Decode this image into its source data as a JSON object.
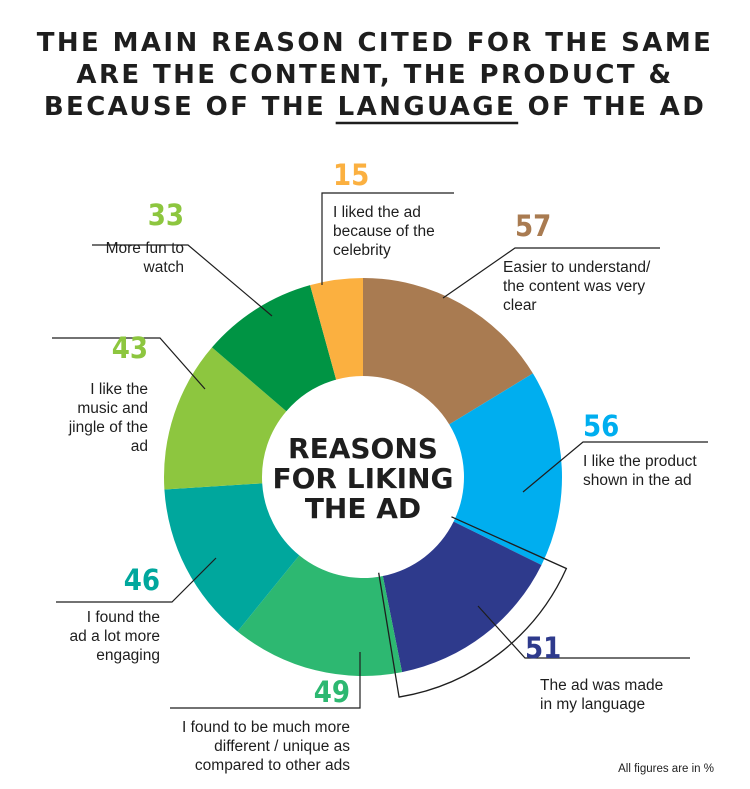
{
  "title": {
    "line1": "THE MAIN REASON CITED FOR THE SAME",
    "line2": "ARE THE CONTENT, THE PRODUCT &",
    "line3_pre": "BECAUSE OF THE ",
    "line3_mid": "LANGUAGE",
    "line3_post": " OF THE AD"
  },
  "center": {
    "line1": "REASONS",
    "line2": "FOR LIKING",
    "line3": "THE AD"
  },
  "footnote": "All figures are in %",
  "chart_data": {
    "type": "donut",
    "title": "REASONS FOR LIKING THE AD",
    "unit": "%",
    "series": [
      {
        "value": 57,
        "label_lines": [
          "Easier to understand/",
          "the content was very",
          "clear"
        ],
        "color": "#A97B51",
        "value_color": "#A97B51"
      },
      {
        "value": 56,
        "label_lines": [
          "I like the product",
          "shown in the ad"
        ],
        "color": "#00AEEF",
        "value_color": "#00AEEF"
      },
      {
        "value": 51,
        "label_lines": [
          "The ad was made",
          "in my language"
        ],
        "color": "#2E3A8C",
        "value_color": "#2E3A8C",
        "highlighted": true
      },
      {
        "value": 49,
        "label_lines": [
          "I found to be much more",
          "different / unique as",
          "compared to other ads"
        ],
        "color": "#2DB871",
        "value_color": "#2DB871"
      },
      {
        "value": 46,
        "label_lines": [
          "I found the",
          "ad a lot more",
          "engaging"
        ],
        "color": "#00A79D",
        "value_color": "#00A79D"
      },
      {
        "value": 43,
        "label_lines": [
          "I like the",
          "music and",
          "jingle of the",
          "ad"
        ],
        "color": "#8DC63F",
        "value_color": "#8DC63F"
      },
      {
        "value": 33,
        "label_lines": [
          "More fun to",
          "watch"
        ],
        "color": "#009444",
        "value_color": "#8DC63F"
      },
      {
        "value": 15,
        "label_lines": [
          "I liked the ad",
          "because of the",
          "celebrity"
        ],
        "color": "#FBB040",
        "value_color": "#FBB040"
      }
    ]
  }
}
